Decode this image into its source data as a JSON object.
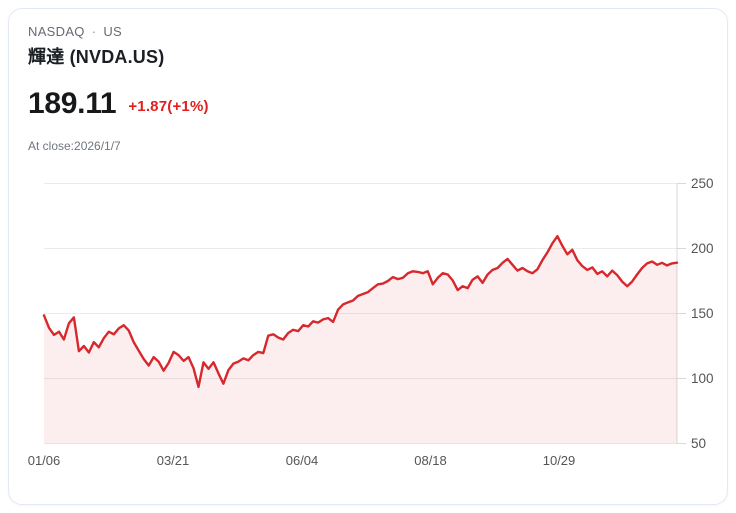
{
  "header": {
    "exchange": "NASDAQ",
    "separator": "·",
    "region": "US",
    "title": "輝達 (NVDA.US)",
    "price": "189.11",
    "change": "+1.87(+1%)",
    "close_info": "At close:2026/1/7"
  },
  "colors": {
    "accent_red": "#e0201e",
    "line_red": "#d7282d",
    "fill_pink": "rgba(214,41,43,0.08)",
    "grid": "#ebebeb",
    "axis_line": "#d8d8d8",
    "axis_label": "#555555",
    "text_muted": "#6b7280"
  },
  "chart_data": {
    "type": "area",
    "xlabel": "",
    "ylabel": "",
    "x_tick_labels": [
      "01/06",
      "03/21",
      "06/04",
      "08/18",
      "10/29"
    ],
    "x_tick_positions": [
      0,
      0.2038,
      0.4076,
      0.6106,
      0.8136
    ],
    "y_ticks": [
      250,
      200,
      150,
      100,
      50
    ],
    "ylim": [
      50,
      250
    ],
    "grid": true,
    "y_axis_side": "right",
    "legend_position": "none",
    "series": [
      {
        "name": "NVDA.US close price",
        "values": [
          148.5,
          139,
          133.5,
          136,
          130,
          142.5,
          147,
          121,
          125,
          120,
          128,
          124,
          131,
          136,
          134,
          138.5,
          141,
          137,
          128,
          121.5,
          115,
          110,
          116.5,
          113,
          106,
          112,
          120.5,
          118,
          113.5,
          116.5,
          108,
          93.5,
          112.5,
          107.5,
          112.5,
          104,
          96,
          106.5,
          111.5,
          113,
          115.5,
          114,
          118,
          120.5,
          119.5,
          133,
          134,
          131.5,
          130,
          135,
          137.5,
          136.5,
          141,
          140,
          144,
          143,
          145.5,
          146.5,
          143.5,
          153,
          157,
          158.5,
          160,
          163.5,
          165,
          166.5,
          169.5,
          172.5,
          173,
          175,
          178,
          176.5,
          177.5,
          181,
          182.5,
          182,
          181,
          182.5,
          172.5,
          177.5,
          181,
          180,
          175.5,
          168,
          171,
          169.5,
          176,
          178.5,
          173.5,
          180,
          183.5,
          185,
          189,
          192,
          187.5,
          183,
          185,
          182.5,
          181,
          184,
          191,
          197,
          204,
          209.5,
          202,
          195.5,
          199,
          191,
          186.5,
          183.5,
          185.5,
          180.5,
          182.5,
          178.5,
          183,
          179.5,
          174.5,
          171,
          174.5,
          180,
          185,
          188.5,
          190,
          187.5,
          189,
          187,
          188.5,
          189.11
        ]
      }
    ]
  }
}
